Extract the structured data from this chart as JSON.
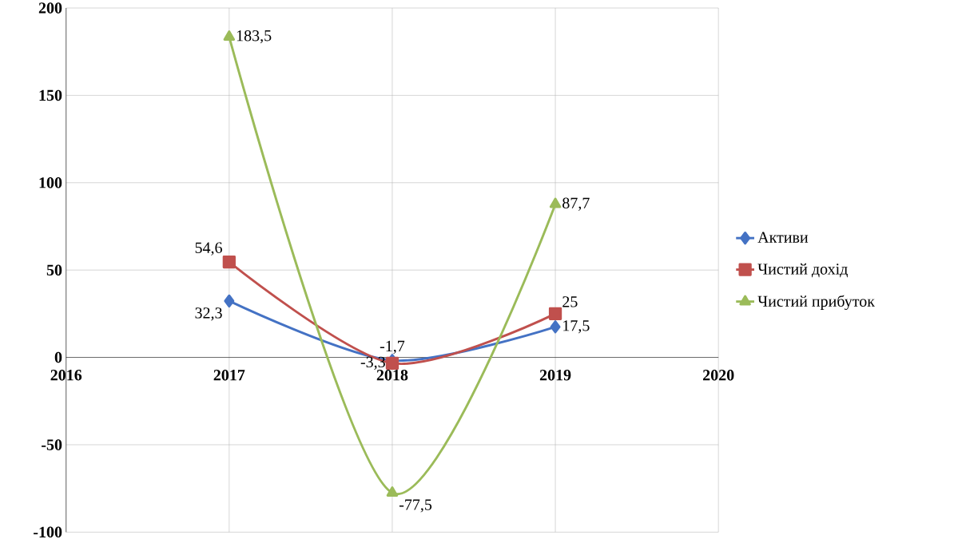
{
  "chart_data": {
    "type": "line",
    "x": [
      2017,
      2018,
      2019
    ],
    "series": [
      {
        "name": "Активи",
        "color": "#4472c4",
        "marker": "diamond",
        "values": [
          32.3,
          -1.7,
          17.5
        ],
        "value_labels": [
          "32,3",
          "-1,7",
          "17,5"
        ]
      },
      {
        "name": "Чистий дохід",
        "color": "#c0504d",
        "marker": "square",
        "values": [
          54.6,
          -3.3,
          25
        ],
        "value_labels": [
          "54,6",
          "-3,3",
          "25"
        ]
      },
      {
        "name": "Чистий прибуток",
        "color": "#9bbb59",
        "marker": "triangle",
        "values": [
          183.5,
          -77.5,
          87.7
        ],
        "value_labels": [
          "183,5",
          "-77,5",
          "87,7"
        ]
      }
    ],
    "xlim": [
      2016,
      2020
    ],
    "xticks": [
      2016,
      2017,
      2018,
      2019,
      2020
    ],
    "ylim": [
      -100,
      200
    ],
    "yticks": [
      -100,
      -50,
      0,
      50,
      100,
      150,
      200
    ],
    "grid": true,
    "legend": "right",
    "line_style": "solid"
  }
}
